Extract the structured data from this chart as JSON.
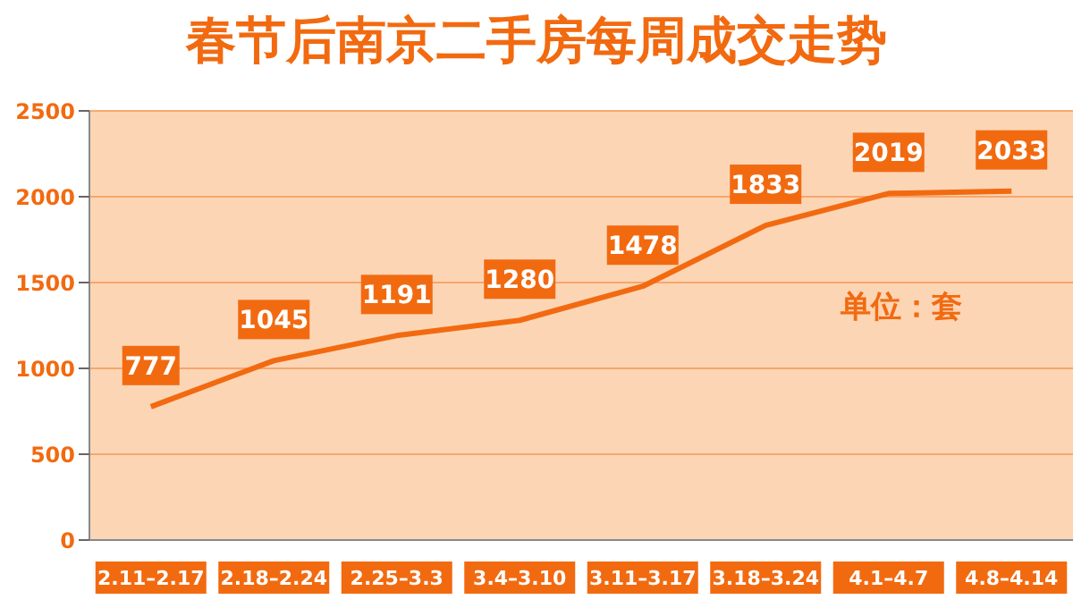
{
  "chart_data": {
    "type": "line",
    "title": "春节后南京二手房每周成交走势",
    "categories": [
      "2.11–2.17",
      "2.18–2.24",
      "2.25–3.3",
      "3.4–3.10",
      "3.11–3.17",
      "3.18–3.24",
      "4.1–4.7",
      "4.8–4.14"
    ],
    "series": [
      {
        "color": "#f26a10",
        "values": [
          777,
          1045,
          1191,
          1280,
          1478,
          1833,
          2019,
          2033
        ]
      }
    ],
    "ylim": [
      0,
      2500
    ],
    "yticks": [
      0,
      500,
      1000,
      1500,
      2000,
      2500
    ],
    "grid": "y",
    "data_labels": true,
    "marker": "none",
    "line_style": "solid",
    "annotations": [
      "单位：套"
    ]
  }
}
